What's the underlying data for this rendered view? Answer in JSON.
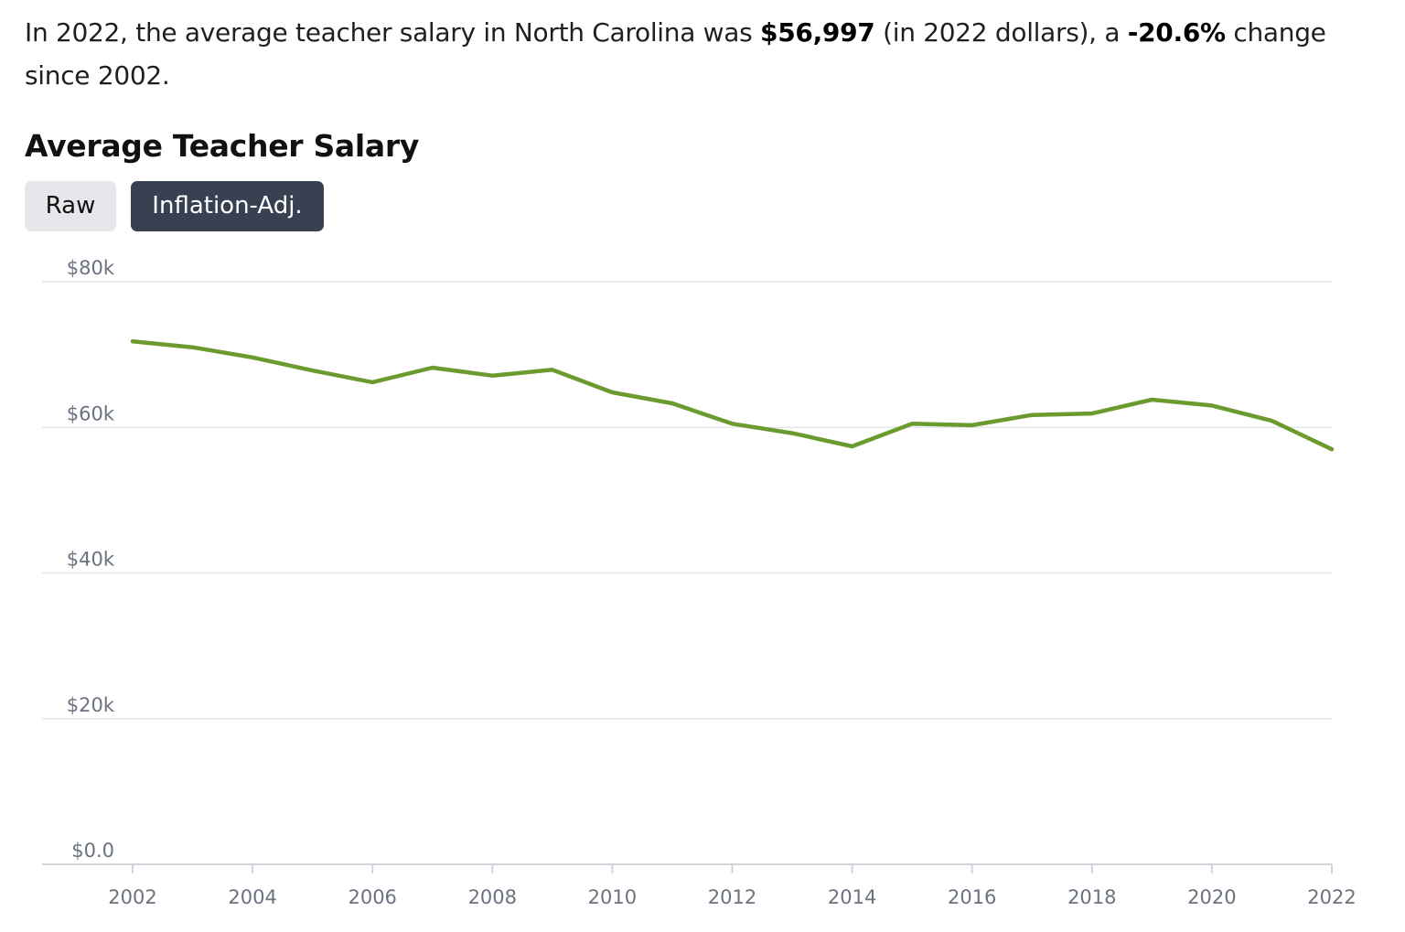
{
  "intro": {
    "prefix": "In 2022, the average teacher salary in North Carolina was ",
    "salary": "$56,997",
    "middle": " (in 2022 dollars), a ",
    "change": "-20.6%",
    "suffix": " change since 2002."
  },
  "toggle": {
    "raw_label": "Raw",
    "adjusted_label": "Inflation-Adj.",
    "selected": "Inflation-Adj."
  },
  "colors": {
    "line": "#6b9a2f",
    "selected_button": "#374151",
    "unselected_button": "#e5e7eb",
    "grid": "#e5e7eb",
    "axis": "#d1d5db",
    "tick_text": "#6b7280"
  },
  "chart_data": {
    "type": "line",
    "title": "Average Teacher Salary",
    "xlabel": "",
    "ylabel": "",
    "x": [
      2002,
      2003,
      2004,
      2005,
      2006,
      2007,
      2008,
      2009,
      2010,
      2011,
      2012,
      2013,
      2014,
      2015,
      2016,
      2017,
      2018,
      2019,
      2020,
      2021,
      2022
    ],
    "series": [
      {
        "values": [
          71800,
          71000,
          69600,
          67800,
          66200,
          68200,
          67100,
          67900,
          64800,
          63300,
          60500,
          59200,
          57400,
          60500,
          60300,
          61700,
          61900,
          63800,
          63000,
          60900,
          56997
        ]
      }
    ],
    "ylim": [
      0,
      80000
    ],
    "xlim": [
      2002,
      2022
    ],
    "yticks": [
      0,
      20000,
      40000,
      60000,
      80000
    ],
    "ytick_labels": [
      "$0.0",
      "$20k",
      "$40k",
      "$60k",
      "$80k"
    ],
    "xticks": [
      2002,
      2004,
      2006,
      2008,
      2010,
      2012,
      2014,
      2016,
      2018,
      2020,
      2022
    ],
    "xtick_labels": [
      "2002",
      "2004",
      "2006",
      "2008",
      "2010",
      "2012",
      "2014",
      "2016",
      "2018",
      "2020",
      "2022"
    ],
    "grid": "horizontal"
  }
}
